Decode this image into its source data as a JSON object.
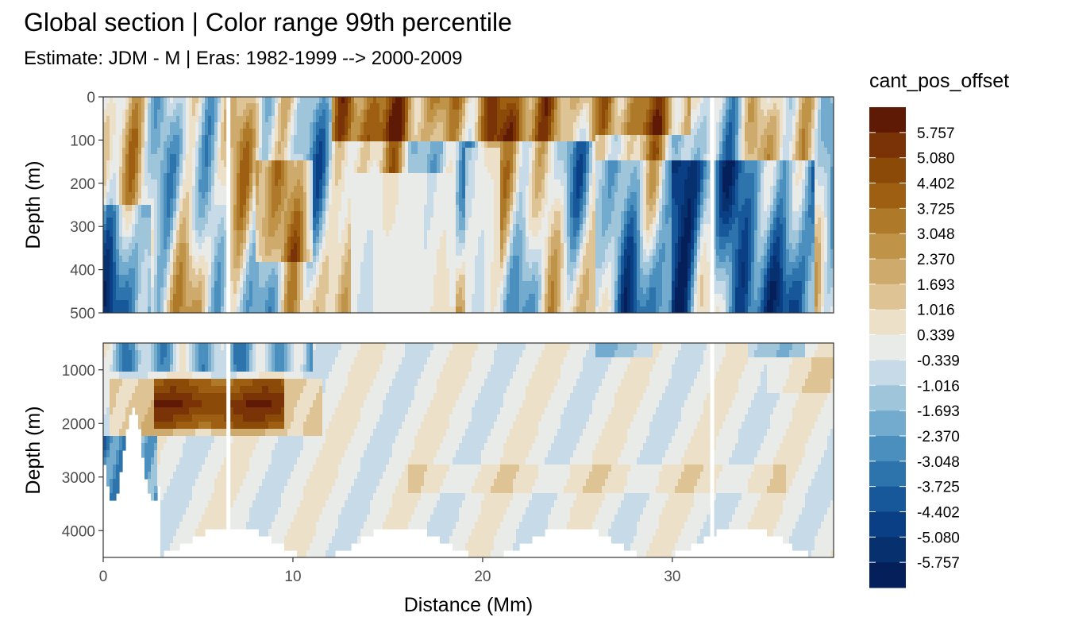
{
  "title": "Global section | Color range 99th percentile",
  "subtitle": "Estimate: JDM - M | Eras: 1982-1999 --> 2000-2009",
  "chart_data": {
    "type": "heatmap",
    "x_label": "Distance (Mm)",
    "y_label": "Depth (m)",
    "xlim": [
      0,
      38.5
    ],
    "x_ticks": [
      "0",
      "10",
      "20",
      "30"
    ],
    "x_tick_values": [
      0,
      10,
      20,
      30
    ],
    "panels": [
      {
        "name": "upper",
        "ylim": [
          0,
          500
        ],
        "y_ticks": [
          "0",
          "100",
          "200",
          "300",
          "400",
          "500"
        ],
        "y_tick_values": [
          0,
          100,
          200,
          300,
          400,
          500
        ]
      },
      {
        "name": "lower",
        "ylim": [
          500,
          4500
        ],
        "y_ticks": [
          "1000",
          "2000",
          "3000",
          "4000"
        ],
        "y_tick_values": [
          1000,
          2000,
          3000,
          4000
        ]
      }
    ],
    "gaps_x": [
      6.6,
      32.1
    ],
    "legend": {
      "title": "cant_pos_offset",
      "labels": [
        "5.757",
        "5.080",
        "4.402",
        "3.725",
        "3.048",
        "2.370",
        "1.693",
        "1.016",
        "0.339",
        "-0.339",
        "-1.016",
        "-1.693",
        "-2.370",
        "-3.048",
        "-3.725",
        "-4.402",
        "-5.080",
        "-5.757"
      ],
      "colors": [
        "#5e1a05",
        "#7a3306",
        "#8c4a09",
        "#9e5f12",
        "#ae7a2a",
        "#bf9348",
        "#ceaa6c",
        "#dec394",
        "#ece0c8",
        "#e8ebe8",
        "#c6dbe7",
        "#9ec5da",
        "#72abcd",
        "#4a8fbe",
        "#2e74ac",
        "#17589a",
        "#0a3f86",
        "#06306e",
        "#041f5a"
      ]
    }
  }
}
